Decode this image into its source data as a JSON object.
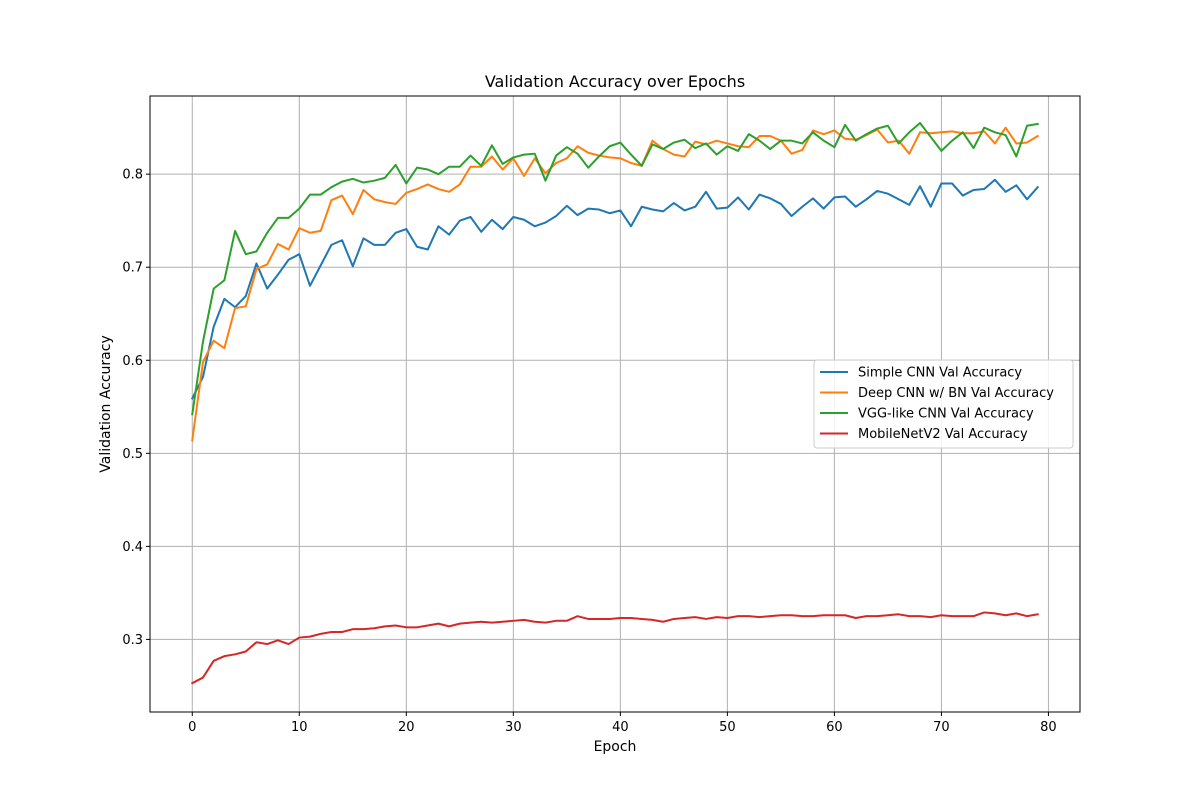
{
  "chart_data": {
    "type": "line",
    "title": "Validation Accuracy over Epochs",
    "xlabel": "Epoch",
    "ylabel": "Validation Accuracy",
    "xlim": [
      -3.95,
      82.95
    ],
    "ylim": [
      0.222,
      0.884
    ],
    "xticks": [
      0,
      10,
      20,
      30,
      40,
      50,
      60,
      70,
      80
    ],
    "yticks": [
      0.3,
      0.4,
      0.5,
      0.6,
      0.7,
      0.8
    ],
    "ytick_labels": [
      "0.3",
      "0.4",
      "0.5",
      "0.6",
      "0.7",
      "0.8"
    ],
    "grid": true,
    "legend_position": "center-right",
    "series": [
      {
        "name": "Simple CNN Val Accuracy",
        "color": "#1f77b4",
        "values": [
          0.559,
          0.582,
          0.636,
          0.666,
          0.657,
          0.669,
          0.704,
          0.677,
          0.692,
          0.708,
          0.714,
          0.68,
          0.702,
          0.724,
          0.729,
          0.701,
          0.731,
          0.724,
          0.724,
          0.737,
          0.741,
          0.722,
          0.719,
          0.744,
          0.735,
          0.75,
          0.754,
          0.738,
          0.751,
          0.741,
          0.754,
          0.751,
          0.744,
          0.748,
          0.755,
          0.766,
          0.756,
          0.763,
          0.762,
          0.758,
          0.761,
          0.744,
          0.765,
          0.762,
          0.76,
          0.769,
          0.761,
          0.765,
          0.781,
          0.763,
          0.764,
          0.775,
          0.762,
          0.778,
          0.774,
          0.768,
          0.755,
          0.765,
          0.774,
          0.763,
          0.775,
          0.776,
          0.765,
          0.773,
          0.782,
          0.779,
          0.773,
          0.767,
          0.787,
          0.765,
          0.79,
          0.79,
          0.777,
          0.783,
          0.784,
          0.794,
          0.781,
          0.788,
          0.773,
          0.786
        ]
      },
      {
        "name": "Deep CNN w/ BN Val Accuracy",
        "color": "#ff7f0e",
        "values": [
          0.514,
          0.598,
          0.621,
          0.613,
          0.656,
          0.658,
          0.698,
          0.703,
          0.725,
          0.719,
          0.742,
          0.737,
          0.739,
          0.772,
          0.777,
          0.757,
          0.783,
          0.773,
          0.77,
          0.768,
          0.78,
          0.784,
          0.789,
          0.784,
          0.781,
          0.789,
          0.808,
          0.808,
          0.819,
          0.805,
          0.817,
          0.798,
          0.817,
          0.801,
          0.812,
          0.817,
          0.83,
          0.823,
          0.82,
          0.818,
          0.817,
          0.812,
          0.809,
          0.836,
          0.827,
          0.821,
          0.819,
          0.835,
          0.832,
          0.836,
          0.833,
          0.83,
          0.829,
          0.841,
          0.841,
          0.836,
          0.822,
          0.826,
          0.847,
          0.843,
          0.847,
          0.838,
          0.837,
          0.842,
          0.848,
          0.834,
          0.836,
          0.822,
          0.845,
          0.844,
          0.845,
          0.846,
          0.844,
          0.844,
          0.846,
          0.833,
          0.85,
          0.833,
          0.834,
          0.841
        ]
      },
      {
        "name": "VGG-like CNN Val Accuracy",
        "color": "#2ca02c",
        "values": [
          0.542,
          0.62,
          0.677,
          0.686,
          0.739,
          0.714,
          0.717,
          0.737,
          0.753,
          0.753,
          0.763,
          0.778,
          0.778,
          0.786,
          0.792,
          0.795,
          0.791,
          0.793,
          0.796,
          0.81,
          0.79,
          0.807,
          0.805,
          0.8,
          0.808,
          0.808,
          0.82,
          0.809,
          0.831,
          0.811,
          0.818,
          0.821,
          0.822,
          0.793,
          0.82,
          0.829,
          0.822,
          0.807,
          0.819,
          0.83,
          0.834,
          0.821,
          0.809,
          0.832,
          0.827,
          0.834,
          0.837,
          0.828,
          0.833,
          0.821,
          0.83,
          0.825,
          0.843,
          0.836,
          0.827,
          0.836,
          0.836,
          0.833,
          0.845,
          0.836,
          0.829,
          0.853,
          0.836,
          0.843,
          0.849,
          0.852,
          0.833,
          0.845,
          0.855,
          0.84,
          0.825,
          0.836,
          0.845,
          0.828,
          0.85,
          0.845,
          0.842,
          0.819,
          0.852,
          0.854
        ]
      },
      {
        "name": "MobileNetV2 Val Accuracy",
        "color": "#d62728",
        "values": [
          0.253,
          0.259,
          0.277,
          0.282,
          0.284,
          0.287,
          0.297,
          0.295,
          0.299,
          0.295,
          0.302,
          0.303,
          0.306,
          0.308,
          0.308,
          0.311,
          0.311,
          0.312,
          0.314,
          0.315,
          0.313,
          0.313,
          0.315,
          0.317,
          0.314,
          0.317,
          0.318,
          0.319,
          0.318,
          0.319,
          0.32,
          0.321,
          0.319,
          0.318,
          0.32,
          0.32,
          0.325,
          0.322,
          0.322,
          0.322,
          0.323,
          0.323,
          0.322,
          0.321,
          0.319,
          0.322,
          0.323,
          0.324,
          0.322,
          0.324,
          0.323,
          0.325,
          0.325,
          0.324,
          0.325,
          0.326,
          0.326,
          0.325,
          0.325,
          0.326,
          0.326,
          0.326,
          0.323,
          0.325,
          0.325,
          0.326,
          0.327,
          0.325,
          0.325,
          0.324,
          0.326,
          0.325,
          0.325,
          0.325,
          0.329,
          0.328,
          0.326,
          0.328,
          0.325,
          0.327
        ]
      }
    ]
  }
}
